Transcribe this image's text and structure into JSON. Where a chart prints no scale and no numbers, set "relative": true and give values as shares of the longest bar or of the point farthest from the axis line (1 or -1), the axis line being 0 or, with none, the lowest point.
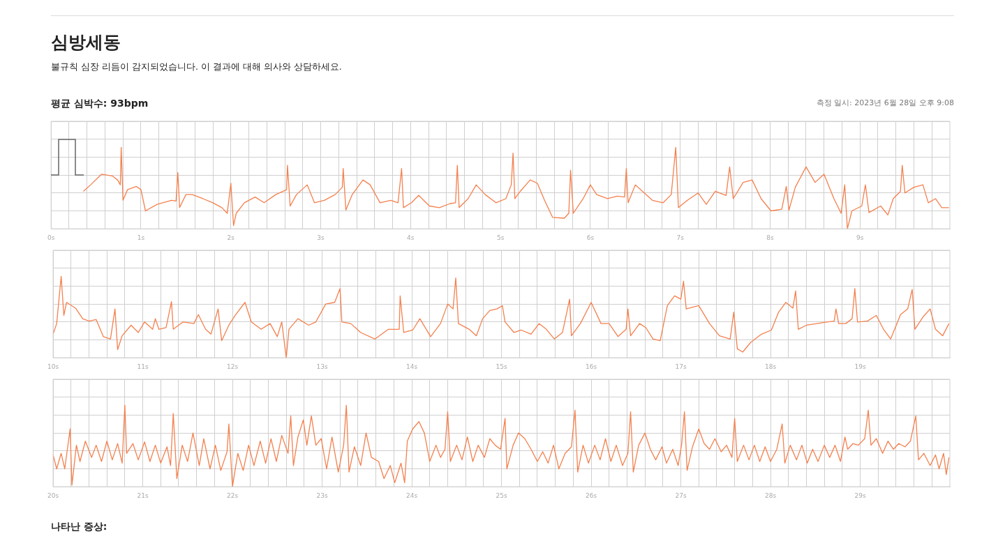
{
  "chart_data": [
    {
      "type": "line",
      "title": "심방세동",
      "subtitle": "불규칙 심장 리듬이 감지되었습니다. 이 결과에 대해 의사와 상담하세요.",
      "annotations": [
        "평균 심박수: 93bpm",
        "측정 일시: 2023년 6월 28일 오후 9:08"
      ],
      "relative": true,
      "grid": true,
      "legend": false,
      "marker": "none",
      "line_style": "solid",
      "tick_labels": "x",
      "xlim": [
        0,
        10
      ],
      "xticks": [
        {
          "value": 0,
          "label": "0s"
        },
        {
          "value": 0.2,
          "label": null
        },
        {
          "value": 0.4,
          "label": null
        },
        {
          "value": 0.6,
          "label": null
        },
        {
          "value": 0.8,
          "label": null
        },
        {
          "value": 1,
          "label": "1s"
        },
        {
          "value": 1.2,
          "label": null
        },
        {
          "value": 1.4,
          "label": null
        },
        {
          "value": 1.6,
          "label": null
        },
        {
          "value": 1.8,
          "label": null
        },
        {
          "value": 2,
          "label": "2s"
        },
        {
          "value": 2.2,
          "label": null
        },
        {
          "value": 2.4,
          "label": null
        },
        {
          "value": 2.6,
          "label": null
        },
        {
          "value": 2.8,
          "label": null
        },
        {
          "value": 3,
          "label": "3s"
        },
        {
          "value": 3.2,
          "label": null
        },
        {
          "value": 3.4,
          "label": null
        },
        {
          "value": 3.6,
          "label": null
        },
        {
          "value": 3.8,
          "label": null
        },
        {
          "value": 4,
          "label": "4s"
        },
        {
          "value": 4.2,
          "label": null
        },
        {
          "value": 4.4,
          "label": null
        },
        {
          "value": 4.6,
          "label": null
        },
        {
          "value": 4.8,
          "label": null
        },
        {
          "value": 5,
          "label": "5s"
        },
        {
          "value": 5.2,
          "label": null
        },
        {
          "value": 5.4,
          "label": null
        },
        {
          "value": 5.6,
          "label": null
        },
        {
          "value": 5.8,
          "label": null
        },
        {
          "value": 6,
          "label": "6s"
        },
        {
          "value": 6.2,
          "label": null
        },
        {
          "value": 6.4,
          "label": null
        },
        {
          "value": 6.6,
          "label": null
        },
        {
          "value": 6.8,
          "label": null
        },
        {
          "value": 7,
          "label": "7s"
        },
        {
          "value": 7.2,
          "label": null
        },
        {
          "value": 7.4,
          "label": null
        },
        {
          "value": 7.6,
          "label": null
        },
        {
          "value": 7.8,
          "label": null
        },
        {
          "value": 8,
          "label": "8s"
        },
        {
          "value": 8.2,
          "label": null
        },
        {
          "value": 8.4,
          "label": null
        },
        {
          "value": 8.6,
          "label": null
        },
        {
          "value": 8.8,
          "label": null
        },
        {
          "value": 9,
          "label": "9s"
        },
        {
          "value": 9.2,
          "label": null
        },
        {
          "value": 9.4,
          "label": null
        },
        {
          "value": 9.6,
          "label": null
        },
        {
          "value": 9.8,
          "label": null
        }
      ],
      "series": [
        {
          "color": "#f4804e",
          "x": [
            0.36,
            0.44,
            0.56,
            0.68,
            0.74,
            0.77,
            0.78,
            0.8,
            0.85,
            0.95,
            1.0,
            1.05,
            1.18,
            1.34,
            1.39,
            1.41,
            1.43,
            1.5,
            1.57,
            1.69,
            1.8,
            1.9,
            1.96,
            2.0,
            2.03,
            2.06,
            2.15,
            2.27,
            2.37,
            2.5,
            2.62,
            2.63,
            2.66,
            2.73,
            2.85,
            2.93,
            3.04,
            3.16,
            3.24,
            3.25,
            3.28,
            3.35,
            3.47,
            3.55,
            3.66,
            3.78,
            3.86,
            3.9,
            3.92,
            4.01,
            4.09,
            4.21,
            4.32,
            4.44,
            4.5,
            4.52,
            4.54,
            4.64,
            4.73,
            4.83,
            4.95,
            5.06,
            5.12,
            5.14,
            5.16,
            5.22,
            5.33,
            5.41,
            5.49,
            5.58,
            5.71,
            5.76,
            5.78,
            5.81,
            5.92,
            6.0,
            6.07,
            6.19,
            6.3,
            6.38,
            6.4,
            6.42,
            6.5,
            6.58,
            6.69,
            6.81,
            6.9,
            6.95,
            6.98,
            7.08,
            7.2,
            7.29,
            7.39,
            7.51,
            7.55,
            7.59,
            7.7,
            7.8,
            7.9,
            8.01,
            8.13,
            8.18,
            8.21,
            8.28,
            8.4,
            8.5,
            8.6,
            8.71,
            8.79,
            8.83,
            8.86,
            8.91,
            9.02,
            9.06,
            9.1,
            9.23,
            9.31,
            9.37,
            9.45,
            9.47,
            9.5,
            9.6,
            9.7,
            9.76,
            9.84,
            9.91,
            9.99
          ],
          "values": [
            0.46,
            0.54,
            0.67,
            0.65,
            0.6,
            0.54,
            1.0,
            0.35,
            0.48,
            0.52,
            0.48,
            0.22,
            0.3,
            0.35,
            0.34,
            0.69,
            0.26,
            0.42,
            0.42,
            0.37,
            0.32,
            0.26,
            0.19,
            0.56,
            0.04,
            0.19,
            0.32,
            0.39,
            0.32,
            0.42,
            0.48,
            0.78,
            0.28,
            0.42,
            0.54,
            0.32,
            0.35,
            0.42,
            0.51,
            0.74,
            0.23,
            0.42,
            0.6,
            0.54,
            0.32,
            0.35,
            0.32,
            0.74,
            0.26,
            0.32,
            0.41,
            0.28,
            0.26,
            0.31,
            0.32,
            0.78,
            0.26,
            0.37,
            0.54,
            0.42,
            0.32,
            0.37,
            0.54,
            0.93,
            0.37,
            0.46,
            0.6,
            0.56,
            0.35,
            0.14,
            0.13,
            0.19,
            0.72,
            0.19,
            0.37,
            0.54,
            0.42,
            0.37,
            0.4,
            0.39,
            0.74,
            0.32,
            0.54,
            0.46,
            0.35,
            0.32,
            0.42,
            1.0,
            0.26,
            0.35,
            0.44,
            0.3,
            0.46,
            0.41,
            0.76,
            0.37,
            0.57,
            0.6,
            0.37,
            0.22,
            0.24,
            0.52,
            0.23,
            0.51,
            0.76,
            0.57,
            0.67,
            0.37,
            0.19,
            0.54,
            0.0,
            0.22,
            0.28,
            0.54,
            0.2,
            0.28,
            0.17,
            0.37,
            0.46,
            0.78,
            0.44,
            0.51,
            0.54,
            0.32,
            0.37,
            0.26,
            0.26
          ]
        }
      ]
    },
    {
      "type": "line",
      "relative": true,
      "grid": true,
      "legend": false,
      "marker": "none",
      "line_style": "solid",
      "tick_labels": "x",
      "xlim": [
        10,
        20
      ],
      "xticks": [
        {
          "value": 10,
          "label": "10s"
        },
        {
          "value": 10.2,
          "label": null
        },
        {
          "value": 10.4,
          "label": null
        },
        {
          "value": 10.6,
          "label": null
        },
        {
          "value": 10.8,
          "label": null
        },
        {
          "value": 11,
          "label": "11s"
        },
        {
          "value": 11.2,
          "label": null
        },
        {
          "value": 11.4,
          "label": null
        },
        {
          "value": 11.6,
          "label": null
        },
        {
          "value": 11.8,
          "label": null
        },
        {
          "value": 12,
          "label": "12s"
        },
        {
          "value": 12.2,
          "label": null
        },
        {
          "value": 12.4,
          "label": null
        },
        {
          "value": 12.6,
          "label": null
        },
        {
          "value": 12.8,
          "label": null
        },
        {
          "value": 13,
          "label": "13s"
        },
        {
          "value": 13.2,
          "label": null
        },
        {
          "value": 13.4,
          "label": null
        },
        {
          "value": 13.6,
          "label": null
        },
        {
          "value": 13.8,
          "label": null
        },
        {
          "value": 14,
          "label": "14s"
        },
        {
          "value": 14.2,
          "label": null
        },
        {
          "value": 14.4,
          "label": null
        },
        {
          "value": 14.6,
          "label": null
        },
        {
          "value": 14.8,
          "label": null
        },
        {
          "value": 15,
          "label": "15s"
        },
        {
          "value": 15.2,
          "label": null
        },
        {
          "value": 15.4,
          "label": null
        },
        {
          "value": 15.6,
          "label": null
        },
        {
          "value": 15.8,
          "label": null
        },
        {
          "value": 16,
          "label": "16s"
        },
        {
          "value": 16.2,
          "label": null
        },
        {
          "value": 16.4,
          "label": null
        },
        {
          "value": 16.6,
          "label": null
        },
        {
          "value": 16.8,
          "label": null
        },
        {
          "value": 17,
          "label": "17s"
        },
        {
          "value": 17.2,
          "label": null
        },
        {
          "value": 17.4,
          "label": null
        },
        {
          "value": 17.6,
          "label": null
        },
        {
          "value": 17.8,
          "label": null
        },
        {
          "value": 18,
          "label": "18s"
        },
        {
          "value": 18.2,
          "label": null
        },
        {
          "value": 18.4,
          "label": null
        },
        {
          "value": 18.6,
          "label": null
        },
        {
          "value": 18.8,
          "label": null
        },
        {
          "value": 19,
          "label": "19s"
        },
        {
          "value": 19.2,
          "label": null
        },
        {
          "value": 19.4,
          "label": null
        },
        {
          "value": 19.6,
          "label": null
        },
        {
          "value": 19.8,
          "label": null
        }
      ],
      "series": [
        {
          "color": "#f4804e",
          "x": [
            10.0,
            10.04,
            10.09,
            10.12,
            10.15,
            10.25,
            10.33,
            10.4,
            10.48,
            10.56,
            10.64,
            10.69,
            10.72,
            10.77,
            10.87,
            10.95,
            11.02,
            11.11,
            11.14,
            11.18,
            11.26,
            11.32,
            11.34,
            11.45,
            11.57,
            11.62,
            11.7,
            11.76,
            11.84,
            11.88,
            11.96,
            12.03,
            12.14,
            12.21,
            12.32,
            12.42,
            12.5,
            12.55,
            12.6,
            12.63,
            12.73,
            12.85,
            12.93,
            13.04,
            13.14,
            13.2,
            13.22,
            13.32,
            13.43,
            13.59,
            13.74,
            13.86,
            13.87,
            13.91,
            14.01,
            14.09,
            14.21,
            14.32,
            14.4,
            14.46,
            14.49,
            14.52,
            14.64,
            14.72,
            14.79,
            14.87,
            14.95,
            15.01,
            15.04,
            15.14,
            15.22,
            15.33,
            15.42,
            15.5,
            15.59,
            15.68,
            15.76,
            15.78,
            15.88,
            16.0,
            16.11,
            16.2,
            16.3,
            16.39,
            16.41,
            16.44,
            16.54,
            16.61,
            16.69,
            16.77,
            16.85,
            16.93,
            17.0,
            17.03,
            17.06,
            17.2,
            17.32,
            17.43,
            17.55,
            17.59,
            17.63,
            17.69,
            17.78,
            17.9,
            18.01,
            18.09,
            18.17,
            18.25,
            18.28,
            18.31,
            18.4,
            18.52,
            18.63,
            18.71,
            18.73,
            18.76,
            18.84,
            18.91,
            18.94,
            18.97,
            19.08,
            19.18,
            19.26,
            19.34,
            19.45,
            19.53,
            19.58,
            19.61,
            19.7,
            19.78,
            19.84,
            19.92,
            19.99
          ],
          "values": [
            0.29,
            0.42,
            1.0,
            0.52,
            0.68,
            0.61,
            0.48,
            0.45,
            0.47,
            0.26,
            0.23,
            0.6,
            0.1,
            0.27,
            0.4,
            0.31,
            0.44,
            0.35,
            0.48,
            0.35,
            0.37,
            0.69,
            0.35,
            0.44,
            0.42,
            0.53,
            0.35,
            0.29,
            0.6,
            0.21,
            0.4,
            0.52,
            0.68,
            0.44,
            0.35,
            0.42,
            0.26,
            0.44,
            0.0,
            0.35,
            0.48,
            0.4,
            0.44,
            0.66,
            0.68,
            0.85,
            0.44,
            0.42,
            0.31,
            0.23,
            0.35,
            0.35,
            0.76,
            0.31,
            0.34,
            0.48,
            0.26,
            0.42,
            0.66,
            0.6,
            0.98,
            0.42,
            0.35,
            0.27,
            0.48,
            0.58,
            0.6,
            0.64,
            0.44,
            0.31,
            0.34,
            0.29,
            0.42,
            0.35,
            0.23,
            0.31,
            0.72,
            0.27,
            0.42,
            0.68,
            0.42,
            0.42,
            0.26,
            0.35,
            0.6,
            0.27,
            0.42,
            0.37,
            0.23,
            0.21,
            0.64,
            0.76,
            0.72,
            0.94,
            0.6,
            0.64,
            0.42,
            0.27,
            0.23,
            0.56,
            0.11,
            0.07,
            0.19,
            0.29,
            0.34,
            0.56,
            0.68,
            0.61,
            0.82,
            0.35,
            0.4,
            0.42,
            0.44,
            0.45,
            0.6,
            0.42,
            0.42,
            0.48,
            0.85,
            0.44,
            0.45,
            0.52,
            0.35,
            0.23,
            0.53,
            0.6,
            0.84,
            0.35,
            0.5,
            0.6,
            0.35,
            0.27,
            0.42
          ]
        }
      ]
    },
    {
      "type": "line",
      "annotations": [
        "나타난 증상:"
      ],
      "relative": true,
      "grid": true,
      "legend": false,
      "marker": "none",
      "line_style": "solid",
      "tick_labels": "x",
      "xlim": [
        20,
        30
      ],
      "xticks": [
        {
          "value": 20,
          "label": "20s"
        },
        {
          "value": 20.2,
          "label": null
        },
        {
          "value": 20.4,
          "label": null
        },
        {
          "value": 20.6,
          "label": null
        },
        {
          "value": 20.8,
          "label": null
        },
        {
          "value": 21,
          "label": "21s"
        },
        {
          "value": 21.2,
          "label": null
        },
        {
          "value": 21.4,
          "label": null
        },
        {
          "value": 21.6,
          "label": null
        },
        {
          "value": 21.8,
          "label": null
        },
        {
          "value": 22,
          "label": "22s"
        },
        {
          "value": 22.2,
          "label": null
        },
        {
          "value": 22.4,
          "label": null
        },
        {
          "value": 22.6,
          "label": null
        },
        {
          "value": 22.8,
          "label": null
        },
        {
          "value": 23,
          "label": "23s"
        },
        {
          "value": 23.2,
          "label": null
        },
        {
          "value": 23.4,
          "label": null
        },
        {
          "value": 23.6,
          "label": null
        },
        {
          "value": 23.8,
          "label": null
        },
        {
          "value": 24,
          "label": "24s"
        },
        {
          "value": 24.2,
          "label": null
        },
        {
          "value": 24.4,
          "label": null
        },
        {
          "value": 24.6,
          "label": null
        },
        {
          "value": 24.8,
          "label": null
        },
        {
          "value": 25,
          "label": "25s"
        },
        {
          "value": 25.2,
          "label": null
        },
        {
          "value": 25.4,
          "label": null
        },
        {
          "value": 25.6,
          "label": null
        },
        {
          "value": 25.8,
          "label": null
        },
        {
          "value": 26,
          "label": "26s"
        },
        {
          "value": 26.2,
          "label": null
        },
        {
          "value": 26.4,
          "label": null
        },
        {
          "value": 26.6,
          "label": null
        },
        {
          "value": 26.8,
          "label": null
        },
        {
          "value": 27,
          "label": "27s"
        },
        {
          "value": 27.2,
          "label": null
        },
        {
          "value": 27.4,
          "label": null
        },
        {
          "value": 27.6,
          "label": null
        },
        {
          "value": 27.8,
          "label": null
        },
        {
          "value": 28,
          "label": "28s"
        },
        {
          "value": 28.2,
          "label": null
        },
        {
          "value": 28.4,
          "label": null
        },
        {
          "value": 28.6,
          "label": null
        },
        {
          "value": 28.8,
          "label": null
        },
        {
          "value": 29,
          "label": "29s"
        },
        {
          "value": 29.2,
          "label": null
        },
        {
          "value": 29.4,
          "label": null
        },
        {
          "value": 29.6,
          "label": null
        },
        {
          "value": 29.8,
          "label": null
        }
      ],
      "series": [
        {
          "color": "#f4804e",
          "x": [
            20.0,
            20.04,
            20.09,
            20.13,
            20.19,
            20.21,
            20.26,
            20.3,
            20.36,
            20.43,
            20.48,
            20.54,
            20.6,
            20.66,
            20.72,
            20.77,
            20.8,
            20.82,
            20.89,
            20.95,
            21.02,
            21.08,
            21.14,
            21.2,
            21.27,
            21.31,
            21.34,
            21.38,
            21.44,
            21.5,
            21.56,
            21.63,
            21.68,
            21.75,
            21.81,
            21.87,
            21.94,
            21.96,
            22.0,
            22.06,
            22.12,
            22.18,
            22.24,
            22.31,
            22.37,
            22.43,
            22.49,
            22.55,
            22.62,
            22.65,
            22.68,
            22.73,
            22.79,
            22.83,
            22.88,
            22.93,
            22.99,
            23.05,
            23.11,
            23.18,
            23.24,
            23.27,
            23.3,
            23.36,
            23.43,
            23.49,
            23.55,
            23.63,
            23.69,
            23.76,
            23.81,
            23.88,
            23.92,
            23.95,
            24.01,
            24.08,
            24.14,
            24.2,
            24.27,
            24.32,
            24.37,
            24.4,
            24.43,
            24.5,
            24.56,
            24.62,
            24.68,
            24.74,
            24.81,
            24.87,
            24.93,
            24.99,
            25.04,
            25.06,
            25.13,
            25.19,
            25.26,
            25.33,
            25.4,
            25.46,
            25.52,
            25.58,
            25.64,
            25.71,
            25.78,
            25.82,
            25.85,
            25.91,
            25.97,
            26.04,
            26.1,
            26.16,
            26.22,
            26.28,
            26.35,
            26.41,
            26.44,
            26.47,
            26.53,
            26.6,
            26.66,
            26.72,
            26.79,
            26.84,
            26.91,
            26.97,
            27.01,
            27.04,
            27.07,
            27.13,
            27.2,
            27.26,
            27.32,
            27.38,
            27.45,
            27.51,
            27.57,
            27.6,
            27.63,
            27.7,
            27.76,
            27.82,
            27.88,
            27.94,
            28.0,
            28.07,
            28.13,
            28.16,
            28.22,
            28.29,
            28.35,
            28.41,
            28.47,
            28.53,
            28.6,
            28.66,
            28.72,
            28.78,
            28.83,
            28.86,
            28.92,
            28.98,
            29.05,
            29.09,
            29.12,
            29.18,
            29.25,
            29.31,
            29.37,
            29.43,
            29.5,
            29.56,
            29.62,
            29.65,
            29.71,
            29.78,
            29.84,
            29.88,
            29.93,
            29.96,
            29.99
          ],
          "values": [
            0.39,
            0.22,
            0.41,
            0.22,
            0.71,
            0.02,
            0.51,
            0.31,
            0.56,
            0.36,
            0.51,
            0.31,
            0.56,
            0.33,
            0.53,
            0.29,
            1.0,
            0.41,
            0.53,
            0.33,
            0.55,
            0.31,
            0.51,
            0.29,
            0.49,
            0.26,
            0.9,
            0.1,
            0.51,
            0.31,
            0.66,
            0.26,
            0.59,
            0.22,
            0.51,
            0.2,
            0.43,
            0.77,
            0.0,
            0.41,
            0.2,
            0.51,
            0.26,
            0.56,
            0.29,
            0.59,
            0.31,
            0.63,
            0.41,
            0.87,
            0.26,
            0.61,
            0.82,
            0.51,
            0.87,
            0.51,
            0.59,
            0.22,
            0.61,
            0.18,
            0.51,
            1.0,
            0.18,
            0.49,
            0.26,
            0.66,
            0.36,
            0.31,
            0.1,
            0.26,
            0.05,
            0.29,
            0.05,
            0.56,
            0.71,
            0.8,
            0.66,
            0.31,
            0.51,
            0.36,
            0.46,
            0.92,
            0.31,
            0.51,
            0.33,
            0.61,
            0.31,
            0.51,
            0.36,
            0.59,
            0.51,
            0.46,
            0.84,
            0.22,
            0.51,
            0.66,
            0.59,
            0.46,
            0.31,
            0.43,
            0.29,
            0.51,
            0.22,
            0.41,
            0.49,
            0.94,
            0.18,
            0.51,
            0.29,
            0.51,
            0.33,
            0.59,
            0.31,
            0.51,
            0.26,
            0.41,
            0.92,
            0.18,
            0.51,
            0.66,
            0.46,
            0.33,
            0.49,
            0.29,
            0.46,
            0.26,
            0.53,
            0.92,
            0.2,
            0.49,
            0.71,
            0.53,
            0.46,
            0.59,
            0.43,
            0.51,
            0.36,
            0.84,
            0.31,
            0.51,
            0.33,
            0.51,
            0.31,
            0.49,
            0.31,
            0.46,
            0.77,
            0.29,
            0.51,
            0.33,
            0.51,
            0.29,
            0.46,
            0.31,
            0.51,
            0.36,
            0.51,
            0.31,
            0.61,
            0.46,
            0.53,
            0.51,
            0.59,
            0.94,
            0.51,
            0.59,
            0.41,
            0.56,
            0.46,
            0.53,
            0.49,
            0.56,
            0.87,
            0.33,
            0.41,
            0.26,
            0.39,
            0.22,
            0.41,
            0.15,
            0.36
          ]
        }
      ]
    }
  ]
}
